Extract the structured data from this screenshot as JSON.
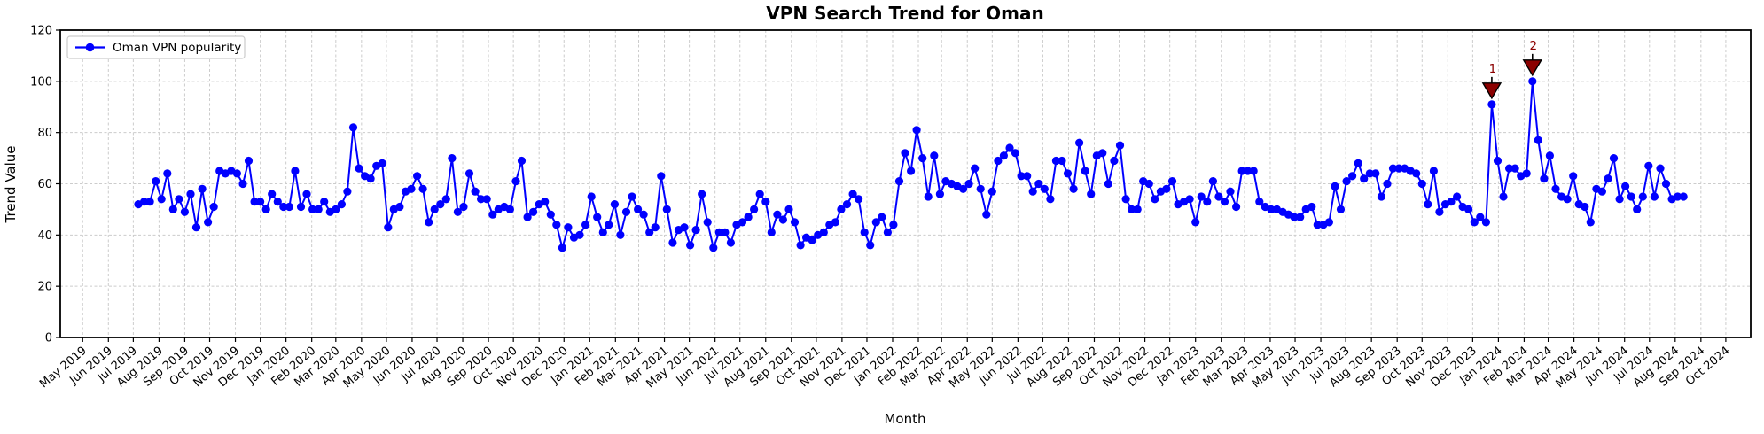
{
  "chart_data": {
    "type": "line",
    "title": "VPN Search Trend for Oman",
    "xlabel": "Month",
    "ylabel": "Trend Value",
    "ylim": [
      0,
      120
    ],
    "yticks": [
      0,
      20,
      40,
      60,
      80,
      100,
      120
    ],
    "grid": true,
    "legend_position": "upper left",
    "x_start_date": "2019-07-07",
    "x_interval_days": 7,
    "x_axis_range": [
      "2019-04-04",
      "2024-10-31"
    ],
    "x_tick_labels": [
      "May 2019",
      "Jun 2019",
      "Jul 2019",
      "Aug 2019",
      "Sep 2019",
      "Oct 2019",
      "Nov 2019",
      "Dec 2019",
      "Jan 2020",
      "Feb 2020",
      "Mar 2020",
      "Apr 2020",
      "May 2020",
      "Jun 2020",
      "Jul 2020",
      "Aug 2020",
      "Sep 2020",
      "Oct 2020",
      "Nov 2020",
      "Dec 2020",
      "Jan 2021",
      "Feb 2021",
      "Mar 2021",
      "Apr 2021",
      "May 2021",
      "Jun 2021",
      "Jul 2021",
      "Aug 2021",
      "Sep 2021",
      "Oct 2021",
      "Nov 2021",
      "Dec 2021",
      "Jan 2022",
      "Feb 2022",
      "Mar 2022",
      "Apr 2022",
      "May 2022",
      "Jun 2022",
      "Jul 2022",
      "Aug 2022",
      "Sep 2022",
      "Oct 2022",
      "Nov 2022",
      "Dec 2022",
      "Jan 2023",
      "Feb 2023",
      "Mar 2023",
      "Apr 2023",
      "May 2023",
      "Jun 2023",
      "Jul 2023",
      "Aug 2023",
      "Sep 2023",
      "Oct 2023",
      "Nov 2023",
      "Dec 2023",
      "Jan 2024",
      "Feb 2024",
      "Mar 2024",
      "Apr 2024",
      "May 2024",
      "Jun 2024",
      "Jul 2024",
      "Aug 2024",
      "Sep 2024",
      "Oct 2024"
    ],
    "series": [
      {
        "name": "Oman VPN popularity",
        "color": "#0000ff",
        "marker": "circle",
        "values": [
          52,
          53,
          53,
          61,
          54,
          64,
          50,
          54,
          49,
          56,
          43,
          58,
          45,
          51,
          65,
          64,
          65,
          64,
          60,
          69,
          53,
          53,
          50,
          56,
          53,
          51,
          51,
          65,
          51,
          56,
          50,
          50,
          53,
          49,
          50,
          52,
          57,
          82,
          66,
          63,
          62,
          67,
          68,
          43,
          50,
          51,
          57,
          58,
          63,
          58,
          45,
          50,
          52,
          54,
          70,
          49,
          51,
          64,
          57,
          54,
          54,
          48,
          50,
          51,
          50,
          61,
          69,
          47,
          49,
          52,
          53,
          48,
          44,
          35,
          43,
          39,
          40,
          44,
          55,
          47,
          41,
          44,
          52,
          40,
          49,
          55,
          50,
          48,
          41,
          43,
          63,
          50,
          37,
          42,
          43,
          36,
          42,
          56,
          45,
          35,
          41,
          41,
          37,
          44,
          45,
          47,
          50,
          56,
          53,
          41,
          48,
          46,
          50,
          45,
          36,
          39,
          38,
          40,
          41,
          44,
          45,
          50,
          52,
          56,
          54,
          41,
          36,
          45,
          47,
          41,
          44,
          61,
          72,
          65,
          81,
          70,
          55,
          71,
          56,
          61,
          60,
          59,
          58,
          60,
          66,
          58,
          48,
          57,
          69,
          71,
          74,
          72,
          63,
          63,
          57,
          60,
          58,
          54,
          69,
          69,
          64,
          58,
          76,
          65,
          56,
          71,
          72,
          60,
          69,
          75,
          54,
          50,
          50,
          61,
          60,
          54,
          57,
          58,
          61,
          52,
          53,
          54,
          45,
          55,
          53,
          61,
          55,
          53,
          57,
          51,
          65,
          65,
          65,
          53,
          51,
          50,
          50,
          49,
          48,
          47,
          47,
          50,
          51,
          44,
          44,
          45,
          59,
          50,
          61,
          63,
          68,
          62,
          64,
          64,
          55,
          60,
          66,
          66,
          66,
          65,
          64,
          60,
          52,
          65,
          49,
          52,
          53,
          55,
          51,
          50,
          45,
          47,
          45,
          91,
          69,
          55,
          66,
          66,
          63,
          64,
          100,
          77,
          62,
          71,
          58,
          55,
          54,
          63,
          52,
          51,
          45,
          58,
          57,
          62,
          70,
          54,
          59,
          55,
          50,
          55,
          67,
          55,
          66,
          60,
          54,
          55,
          55
        ]
      }
    ],
    "annotations": [
      {
        "label": "1",
        "point_index": 233,
        "value": 91,
        "color": "#8b0000"
      },
      {
        "label": "2",
        "point_index": 240,
        "value": 100,
        "color": "#8b0000"
      }
    ],
    "colors": {
      "line": "#0000ff",
      "annotation": "#8b0000",
      "annotation_edge": "#000000",
      "grid": "#cccccc",
      "spine": "#000000",
      "background": "#ffffff"
    }
  }
}
